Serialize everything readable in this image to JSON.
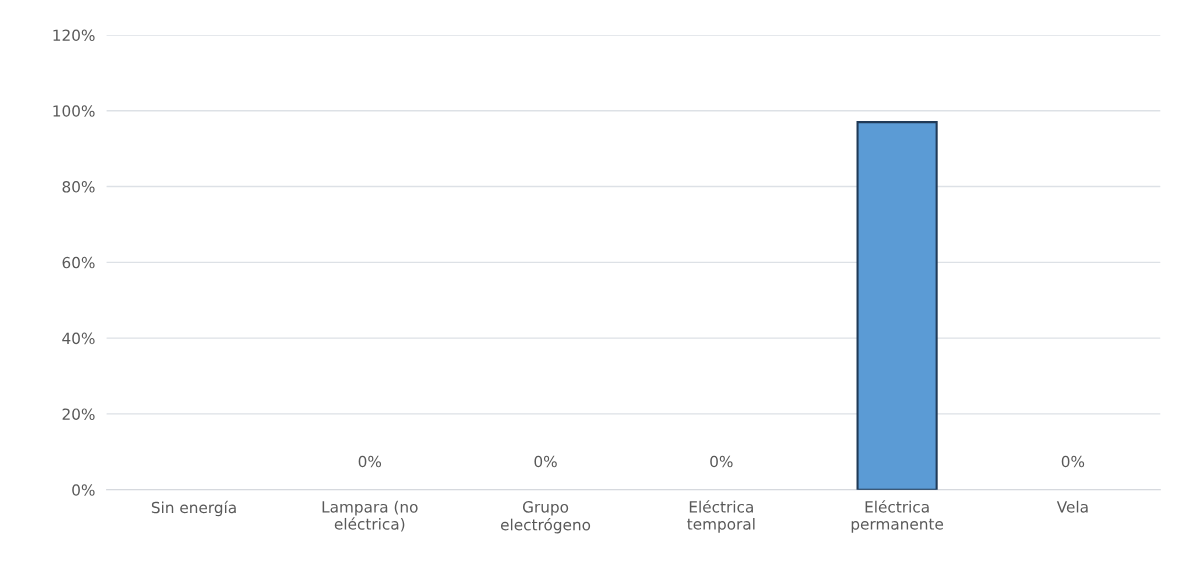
{
  "chart_data": {
    "type": "bar",
    "categories": [
      "Sin energía",
      "Lampara (no\neléctrica)",
      "Grupo\nelectrógeno",
      "Eléctrica\ntemporal",
      "Eléctrica\npermanente",
      "Vela"
    ],
    "values": [
      null,
      0,
      0,
      0,
      97,
      0
    ],
    "value_labels": [
      null,
      "0%",
      "0%",
      "0%",
      null,
      "0%"
    ],
    "color": "#5b9bd5",
    "ylim": [
      0,
      120
    ],
    "yticks": [
      {
        "value": 0,
        "label": "0%"
      },
      {
        "value": 20,
        "label": "20%"
      },
      {
        "value": 40,
        "label": "40%"
      },
      {
        "value": 60,
        "label": "60%"
      },
      {
        "value": 80,
        "label": "80%"
      },
      {
        "value": 100,
        "label": "100%"
      },
      {
        "value": 120,
        "label": "120%"
      }
    ],
    "grid": "y",
    "legend": false
  }
}
